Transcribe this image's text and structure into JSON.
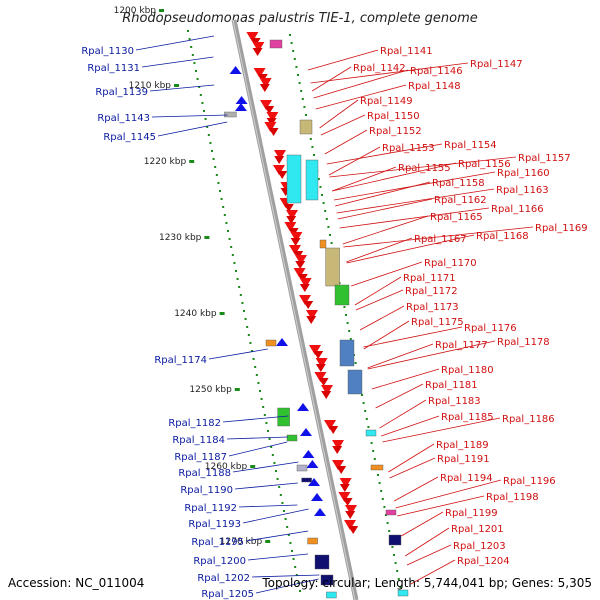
{
  "title": "Rhodopseudomonas palustris TIE-1, complete genome",
  "accession": "Accession: NC_011004",
  "summary": "Topology: circular; Length: 5,744,041 bp; Genes: 5,305",
  "colors": {
    "left_label": "#0a1aa0",
    "right_label": "#d01010",
    "backbone": "#8a8a8a",
    "tick": "#1a8a1a"
  },
  "kbp_marks": [
    "1200 kbp",
    "1210 kbp",
    "1220 kbp",
    "1230 kbp",
    "1240 kbp",
    "1250 kbp",
    "1260 kbp",
    "1270 kbp"
  ],
  "left_genes": [
    "Rpal_1130",
    "Rpal_1131",
    "Rpal_1139",
    "Rpal_1143",
    "Rpal_1145",
    "Rpal_1174",
    "Rpal_1182",
    "Rpal_1184",
    "Rpal_1187",
    "Rpal_1188",
    "Rpal_1190",
    "Rpal_1192",
    "Rpal_1193",
    "Rpal_1195",
    "Rpal_1200",
    "Rpal_1202",
    "Rpal_1205"
  ],
  "right_genes": [
    "Rpal_1141",
    "Rpal_1142",
    "Rpal_1146",
    "Rpal_1147",
    "Rpal_1148",
    "Rpal_1149",
    "Rpal_1150",
    "Rpal_1152",
    "Rpal_1153",
    "Rpal_1154",
    "Rpal_1155",
    "Rpal_1156",
    "Rpal_1157",
    "Rpal_1158",
    "Rpal_1160",
    "Rpal_1162",
    "Rpal_1163",
    "Rpal_1165",
    "Rpal_1166",
    "Rpal_1167",
    "Rpal_1168",
    "Rpal_1169",
    "Rpal_1170",
    "Rpal_1171",
    "Rpal_1172",
    "Rpal_1173",
    "Rpal_1175",
    "Rpal_1176",
    "Rpal_1177",
    "Rpal_1178",
    "Rpal_1180",
    "Rpal_1181",
    "Rpal_1183",
    "Rpal_1185",
    "Rpal_1186",
    "Rpal_1189",
    "Rpal_1191",
    "Rpal_1194",
    "Rpal_1196",
    "Rpal_1198",
    "Rpal_1199",
    "Rpal_1201",
    "Rpal_1203",
    "Rpal_1204"
  ]
}
